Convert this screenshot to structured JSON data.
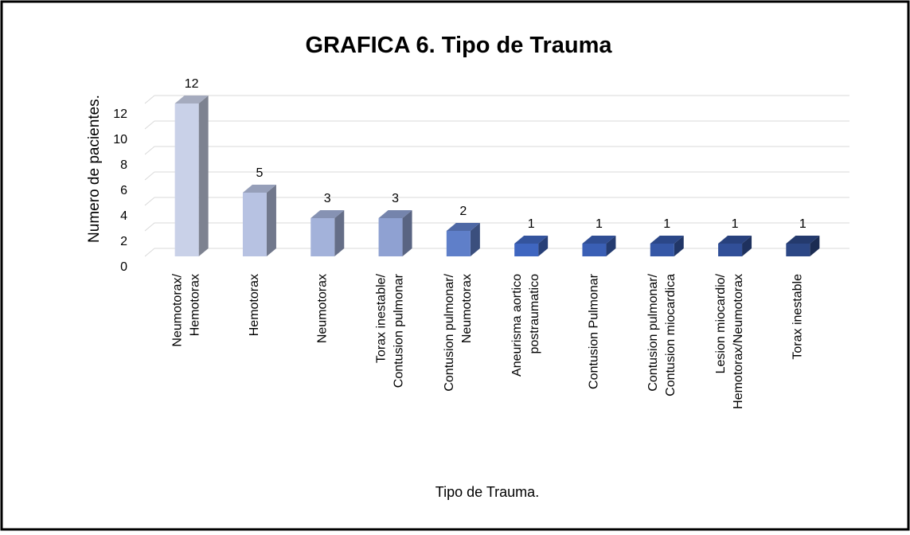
{
  "chart_data": {
    "type": "bar3d",
    "title": "GRAFICA 6. Tipo de Trauma",
    "x_label": "Tipo de Trauma.",
    "y_label": "Numero de pacientes.",
    "categories": [
      "Neumotorax/\nHemotorax",
      "Hemotorax",
      "Neumotorax",
      "Torax inestable/\nContusion pulmonar",
      "Contusion pulmonar/\nNeumotorax",
      "Aneurisma aortico\npostraumatico",
      "Contusion Pulmonar",
      "Contusion pulmonar/\nContusion miocardica",
      "Lesion miocardio/\nHemotorax/Neumotorax",
      "Torax inestable"
    ],
    "values": [
      12,
      5,
      3,
      3,
      2,
      1,
      1,
      1,
      1,
      1
    ],
    "colors": [
      "#c9d1e8",
      "#b7c2e2",
      "#a3b2da",
      "#8fa1d2",
      "#5f7fc9",
      "#3f66c0",
      "#3a5fb5",
      "#3557a6",
      "#314f98",
      "#2c4785"
    ],
    "ylim": [
      0,
      12
    ],
    "yticks": [
      0,
      2,
      4,
      6,
      8,
      10,
      12
    ],
    "grid": true
  }
}
